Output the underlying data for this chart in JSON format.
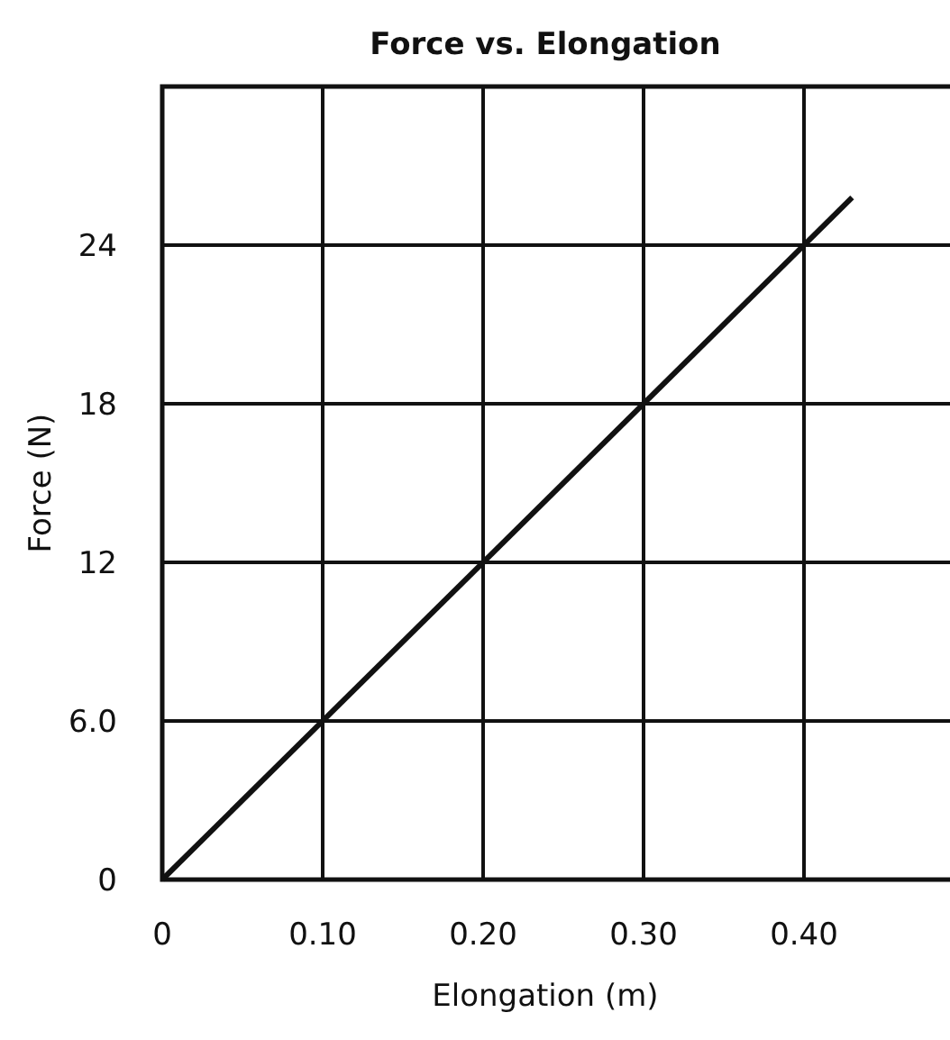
{
  "chart_data": {
    "type": "line",
    "title": "Force vs. Elongation",
    "xlabel": "Elongation (m)",
    "ylabel": "Force (N)",
    "x": [
      0,
      0.43
    ],
    "series": [
      {
        "color": "#111111",
        "values": [
          0,
          25.8
        ]
      }
    ],
    "xlim": [
      0,
      0.5
    ],
    "ylim": [
      0,
      30
    ],
    "xticks": [
      0,
      {
        "value": 0.1,
        "label": "0.10"
      },
      {
        "value": 0.2,
        "label": "0.20"
      },
      {
        "value": 0.3,
        "label": "0.30"
      },
      {
        "value": 0.4,
        "label": "0.40"
      }
    ],
    "yticks": [
      0,
      {
        "value": 6,
        "label": "6.0"
      },
      12,
      18,
      24
    ],
    "grid": true,
    "marker": "none",
    "line_style": "solid"
  }
}
